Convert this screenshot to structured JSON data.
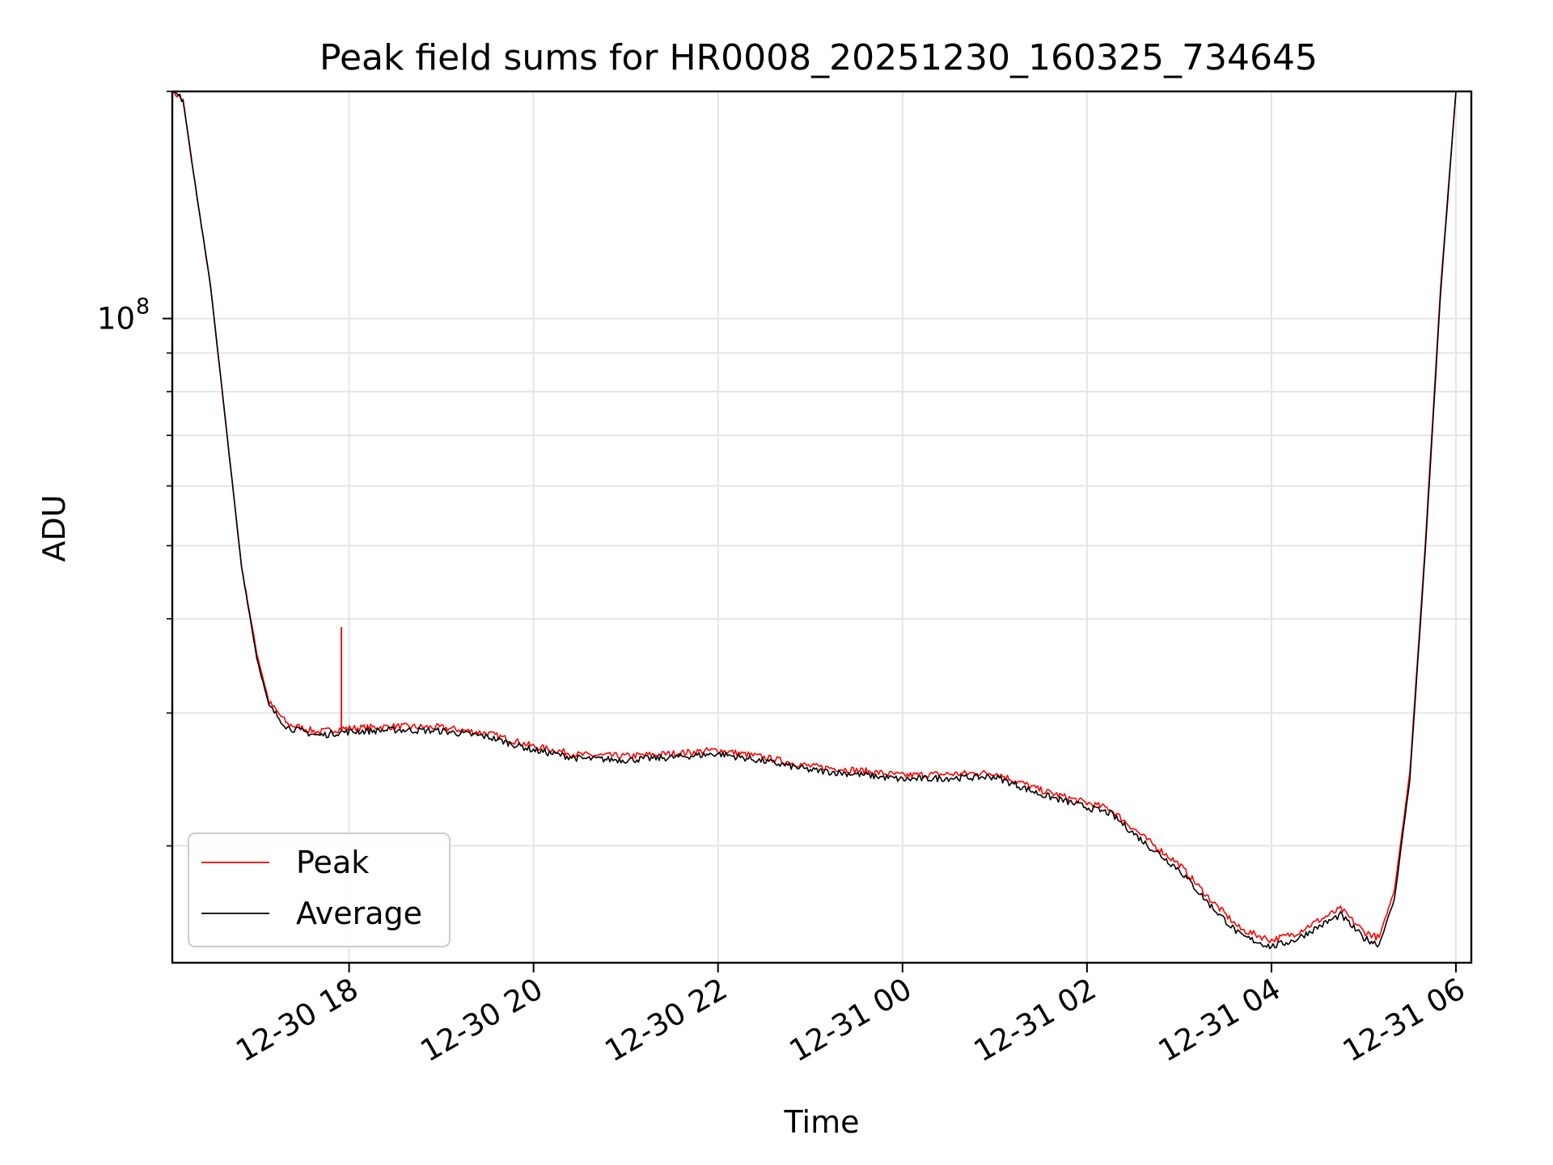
{
  "chart_data": {
    "type": "line",
    "title": "Peak field sums for HR0008_20251230_160325_734645",
    "xlabel": "Time",
    "ylabel": "ADU",
    "y_scale": "log",
    "ylim": [
      14000000,
      200000000
    ],
    "xlim": [
      "2025-12-30 16:05",
      "2025-12-31 06:10"
    ],
    "x_ticks": [
      {
        "t": "2025-12-30 18:00",
        "label": "12-30 18"
      },
      {
        "t": "2025-12-30 20:00",
        "label": "12-30 20"
      },
      {
        "t": "2025-12-30 22:00",
        "label": "12-30 22"
      },
      {
        "t": "2025-12-31 00:00",
        "label": "12-31 00"
      },
      {
        "t": "2025-12-31 02:00",
        "label": "12-31 02"
      },
      {
        "t": "2025-12-31 04:00",
        "label": "12-31 04"
      },
      {
        "t": "2025-12-31 06:00",
        "label": "12-31 06"
      }
    ],
    "y_ticks_major": [
      {
        "value": 100000000,
        "label": "10",
        "exponent": "8"
      }
    ],
    "y_ticks_minor": [
      20000000,
      30000000,
      40000000,
      50000000,
      60000000,
      70000000,
      80000000,
      90000000,
      200000000
    ],
    "grid": true,
    "legend_position": "lower-left",
    "series": [
      {
        "name": "Peak",
        "color": "#ff0000",
        "points": [
          [
            "2025-12-30 16:05",
            200000000
          ],
          [
            "2025-12-30 16:12",
            195000000
          ],
          [
            "2025-12-30 16:20",
            150000000
          ],
          [
            "2025-12-30 16:30",
            110000000
          ],
          [
            "2025-12-30 16:40",
            72000000
          ],
          [
            "2025-12-30 16:50",
            47000000
          ],
          [
            "2025-12-30 17:00",
            36000000
          ],
          [
            "2025-12-30 17:08",
            31000000
          ],
          [
            "2025-12-30 17:20",
            29000000
          ],
          [
            "2025-12-30 17:40",
            28300000
          ],
          [
            "2025-12-30 17:55",
            28600000
          ],
          [
            "2025-12-30 18:30",
            28800000
          ],
          [
            "2025-12-30 19:00",
            28700000
          ],
          [
            "2025-12-30 19:30",
            28200000
          ],
          [
            "2025-12-30 20:00",
            27100000
          ],
          [
            "2025-12-30 20:30",
            26400000
          ],
          [
            "2025-12-30 21:00",
            26300000
          ],
          [
            "2025-12-30 21:30",
            26500000
          ],
          [
            "2025-12-30 22:00",
            26800000
          ],
          [
            "2025-12-30 22:30",
            26200000
          ],
          [
            "2025-12-30 23:00",
            25500000
          ],
          [
            "2025-12-30 23:30",
            25200000
          ],
          [
            "2025-12-31 00:00",
            24800000
          ],
          [
            "2025-12-31 00:30",
            24900000
          ],
          [
            "2025-12-31 01:00",
            25000000
          ],
          [
            "2025-12-31 01:30",
            23700000
          ],
          [
            "2025-12-31 02:00",
            22800000
          ],
          [
            "2025-12-31 02:15",
            22400000
          ],
          [
            "2025-12-31 02:40",
            20300000
          ],
          [
            "2025-12-31 03:00",
            18900000
          ],
          [
            "2025-12-31 03:20",
            17000000
          ],
          [
            "2025-12-31 03:40",
            15500000
          ],
          [
            "2025-12-31 04:00",
            15000000
          ],
          [
            "2025-12-31 04:15",
            15300000
          ],
          [
            "2025-12-31 04:30",
            15900000
          ],
          [
            "2025-12-31 04:45",
            16500000
          ],
          [
            "2025-12-31 05:00",
            15400000
          ],
          [
            "2025-12-31 05:10",
            15100000
          ],
          [
            "2025-12-31 05:20",
            17500000
          ],
          [
            "2025-12-31 05:30",
            25000000
          ],
          [
            "2025-12-31 05:40",
            50000000
          ],
          [
            "2025-12-31 05:50",
            110000000
          ],
          [
            "2025-12-31 06:00",
            200000000
          ]
        ]
      },
      {
        "name": "Average",
        "color": "#000000",
        "points": [
          [
            "2025-12-30 16:05",
            200000000
          ],
          [
            "2025-12-30 16:12",
            195000000
          ],
          [
            "2025-12-30 16:20",
            150000000
          ],
          [
            "2025-12-30 16:30",
            110000000
          ],
          [
            "2025-12-30 16:40",
            72000000
          ],
          [
            "2025-12-30 16:50",
            47000000
          ],
          [
            "2025-12-30 17:00",
            35500000
          ],
          [
            "2025-12-30 17:08",
            30600000
          ],
          [
            "2025-12-30 17:20",
            28700000
          ],
          [
            "2025-12-30 17:40",
            28000000
          ],
          [
            "2025-12-30 17:55",
            28300000
          ],
          [
            "2025-12-30 18:30",
            28500000
          ],
          [
            "2025-12-30 19:00",
            28400000
          ],
          [
            "2025-12-30 19:30",
            27900000
          ],
          [
            "2025-12-30 20:00",
            26800000
          ],
          [
            "2025-12-30 20:30",
            26100000
          ],
          [
            "2025-12-30 21:00",
            26000000
          ],
          [
            "2025-12-30 21:30",
            26200000
          ],
          [
            "2025-12-30 22:00",
            26500000
          ],
          [
            "2025-12-30 22:30",
            25900000
          ],
          [
            "2025-12-30 23:00",
            25200000
          ],
          [
            "2025-12-30 23:30",
            24900000
          ],
          [
            "2025-12-31 00:00",
            24500000
          ],
          [
            "2025-12-31 00:30",
            24600000
          ],
          [
            "2025-12-31 01:00",
            24700000
          ],
          [
            "2025-12-31 01:30",
            23400000
          ],
          [
            "2025-12-31 02:00",
            22500000
          ],
          [
            "2025-12-31 02:15",
            22100000
          ],
          [
            "2025-12-31 02:40",
            20000000
          ],
          [
            "2025-12-31 03:00",
            18600000
          ],
          [
            "2025-12-31 03:20",
            16700000
          ],
          [
            "2025-12-31 03:40",
            15200000
          ],
          [
            "2025-12-31 04:00",
            14700000
          ],
          [
            "2025-12-31 04:15",
            15000000
          ],
          [
            "2025-12-31 04:30",
            15600000
          ],
          [
            "2025-12-31 04:45",
            16200000
          ],
          [
            "2025-12-31 05:00",
            15100000
          ],
          [
            "2025-12-31 05:10",
            14800000
          ],
          [
            "2025-12-31 05:20",
            17000000
          ],
          [
            "2025-12-31 05:30",
            24500000
          ],
          [
            "2025-12-31 05:40",
            49000000
          ],
          [
            "2025-12-31 05:50",
            108000000
          ],
          [
            "2025-12-31 06:00",
            200000000
          ]
        ]
      }
    ],
    "annotations": [
      {
        "series": "Peak",
        "t": "2025-12-30 17:55",
        "value": 39000000
      }
    ]
  }
}
